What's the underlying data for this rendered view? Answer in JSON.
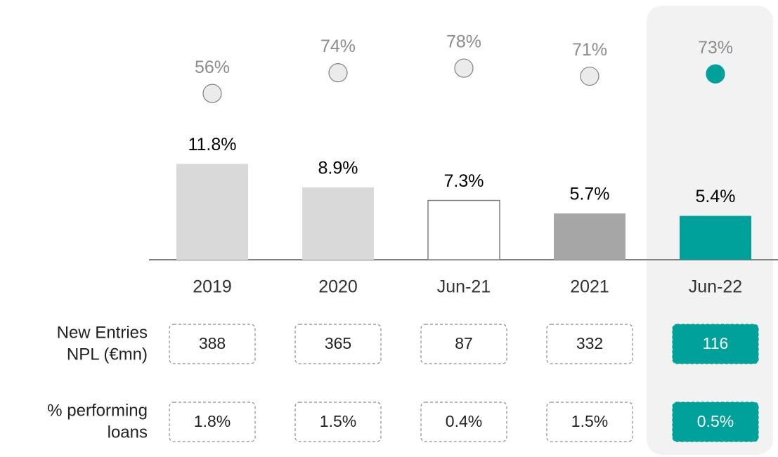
{
  "chart_data": {
    "type": "bar",
    "categories": [
      "2019",
      "2020",
      "Jun-21",
      "2021",
      "Jun-22"
    ],
    "values": [
      11.8,
      8.9,
      7.3,
      5.7,
      5.4
    ],
    "value_labels": [
      "11.8%",
      "8.9%",
      "7.3%",
      "5.7%",
      "5.4%"
    ],
    "colors": [
      "#d9d9d9",
      "#d9d9d9",
      "#ffffff",
      "#a6a6a6",
      "#00a19a"
    ],
    "ylim": [
      0,
      14
    ],
    "coverage": {
      "values": [
        56,
        74,
        78,
        71,
        73
      ],
      "value_labels": [
        "56%",
        "74%",
        "78%",
        "71%",
        "73%"
      ],
      "colors": [
        "#ebebeb",
        "#ebebeb",
        "#ebebeb",
        "#ebebeb",
        "#00a19a"
      ],
      "axis": "y2"
    },
    "y2lim": [
      0,
      100
    ],
    "table_rows": [
      {
        "label_lines": [
          "New Entries",
          "NPL (€mn)"
        ],
        "values": [
          388,
          365,
          87,
          332,
          116
        ]
      },
      {
        "label_lines": [
          "% performing",
          "loans"
        ],
        "values": [
          1.8,
          1.5,
          0.4,
          1.5,
          0.5
        ],
        "value_labels": [
          "1.8%",
          "1.5%",
          "0.4%",
          "1.5%",
          "0.5%"
        ]
      }
    ]
  }
}
